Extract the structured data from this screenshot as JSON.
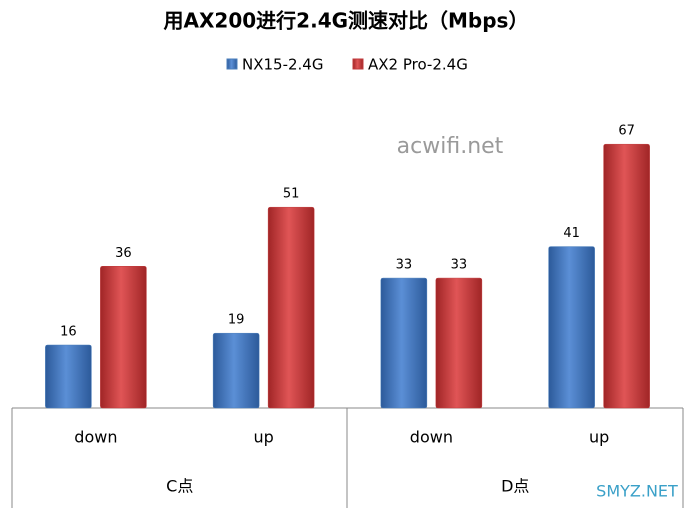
{
  "chart_data": {
    "type": "bar",
    "title": "用AX200进行2.4G测速对比（Mbps）",
    "categories": [
      "down",
      "up",
      "down",
      "up"
    ],
    "groups": [
      {
        "label": "C点",
        "span": 2
      },
      {
        "label": "D点",
        "span": 2
      }
    ],
    "series": [
      {
        "name": "NX15-2.4G",
        "color": "#4a7ebb",
        "values": [
          16,
          19,
          33,
          41
        ]
      },
      {
        "name": "AX2 Pro-2.4G",
        "color": "#c0393b",
        "values": [
          36,
          51,
          33,
          67
        ]
      }
    ],
    "ylim": [
      0,
      80
    ],
    "legend": "top",
    "annotations": [
      "acwifi.net",
      "SMYZ.NET"
    ]
  }
}
